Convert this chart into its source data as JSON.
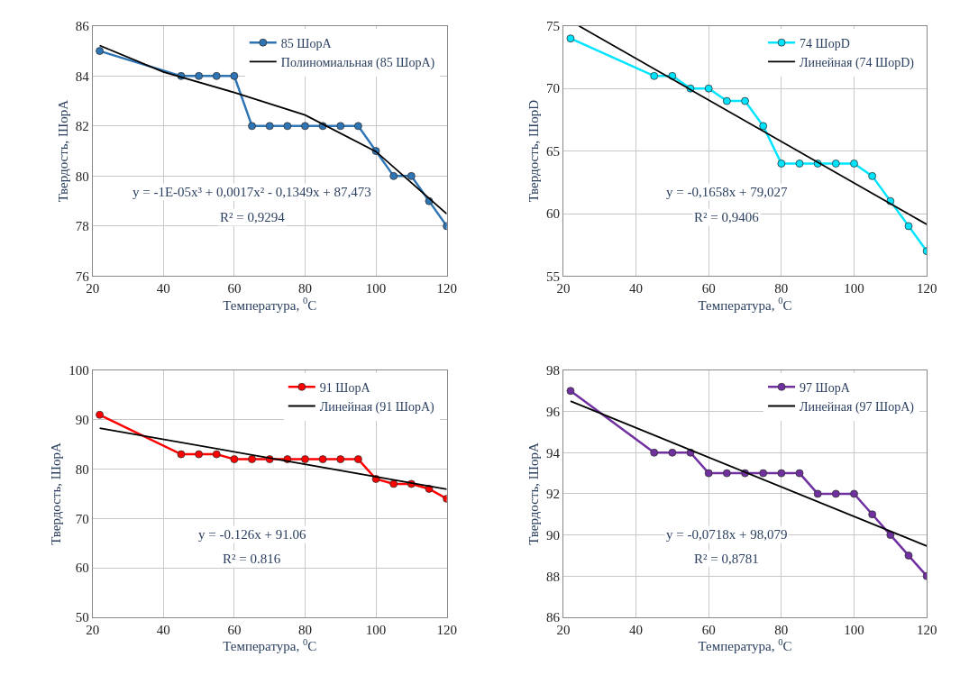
{
  "chart_data": [
    {
      "type": "line",
      "xlabel": "Температура, $^{0}$C",
      "ylabel": "Твердость, ШорА",
      "xlim": [
        20,
        120
      ],
      "xticks": [
        20,
        40,
        60,
        80,
        100,
        120
      ],
      "ylim": [
        76,
        86
      ],
      "yticks": [
        76,
        78,
        80,
        82,
        84,
        86
      ],
      "grid": true,
      "legend": "top right",
      "annotations": [
        "y = -1E-05x³ + 0,0017x² - 0,1349x + 87,473",
        "R² = 0,9294"
      ],
      "series": [
        {
          "name": "85 ШорА",
          "color": "#2e75b6",
          "marker": "circle",
          "x": [
            22,
            45,
            50,
            55,
            60,
            65,
            70,
            75,
            80,
            85,
            90,
            95,
            100,
            105,
            110,
            115,
            120
          ],
          "values": [
            85,
            84,
            84,
            84,
            84,
            82,
            82,
            82,
            82,
            82,
            82,
            82,
            81,
            80,
            80,
            79,
            78
          ]
        },
        {
          "name": "Полиномиальная (85 ШорА)",
          "type": "line",
          "color": "#000000",
          "marker": "none",
          "x": [
            22,
            40,
            60,
            80,
            100,
            120
          ],
          "values": [
            85.22,
            84.16,
            83.34,
            82.44,
            80.98,
            78.49
          ]
        }
      ]
    },
    {
      "type": "line",
      "xlabel": "Температура, $^{0}$C",
      "ylabel": "Твердость, ШорD",
      "xlim": [
        20,
        120
      ],
      "xticks": [
        20,
        40,
        60,
        80,
        100,
        120
      ],
      "ylim": [
        55,
        75
      ],
      "yticks": [
        55,
        60,
        65,
        70,
        75
      ],
      "grid": true,
      "legend": "top right",
      "annotations": [
        "y = -0,1658x + 79,027",
        "R² = 0,9406"
      ],
      "series": [
        {
          "name": "74 ШорD",
          "color": "#00e5ff",
          "marker": "circle",
          "x": [
            22,
            45,
            50,
            55,
            60,
            65,
            70,
            75,
            80,
            85,
            90,
            95,
            100,
            105,
            110,
            115,
            120
          ],
          "values": [
            74,
            71,
            71,
            70,
            70,
            69,
            69,
            67,
            64,
            64,
            64,
            64,
            64,
            63,
            61,
            59,
            57
          ]
        },
        {
          "name": "Линейная (74 ШорD)",
          "type": "line",
          "color": "#000000",
          "marker": "none",
          "x": [
            24.3,
            120
          ],
          "values": [
            75.0,
            59.13
          ]
        }
      ]
    },
    {
      "type": "line",
      "xlabel": "Температура, $^{0}$C",
      "ylabel": "Твердость, ШорА",
      "xlim": [
        20,
        120
      ],
      "xticks": [
        20,
        40,
        60,
        80,
        100,
        120
      ],
      "ylim": [
        50,
        100
      ],
      "yticks": [
        50,
        60,
        70,
        80,
        90,
        100
      ],
      "grid": true,
      "legend": "top right",
      "annotations": [
        "y = -0.126x + 91.06",
        "R² = 0.816"
      ],
      "series": [
        {
          "name": "91 ШорА",
          "color": "#ff0000",
          "marker": "circle",
          "x": [
            22,
            45,
            50,
            55,
            60,
            65,
            70,
            75,
            80,
            85,
            90,
            95,
            100,
            105,
            110,
            115,
            120
          ],
          "values": [
            91,
            83,
            83,
            83,
            82,
            82,
            82,
            82,
            82,
            82,
            82,
            82,
            78,
            77,
            77,
            76,
            74
          ]
        },
        {
          "name": "Линейная (91 ШорА)",
          "type": "line",
          "color": "#000000",
          "marker": "none",
          "x": [
            22,
            120
          ],
          "values": [
            88.29,
            75.94
          ]
        }
      ]
    },
    {
      "type": "line",
      "xlabel": "Температура, $^{0}$C",
      "ylabel": "Твердость, ШорА",
      "xlim": [
        20,
        120
      ],
      "xticks": [
        20,
        40,
        60,
        80,
        100,
        120
      ],
      "ylim": [
        86,
        98
      ],
      "yticks": [
        86,
        88,
        90,
        92,
        94,
        96,
        98
      ],
      "grid": true,
      "legend": "top right",
      "annotations": [
        "y = -0,0718x + 98,079",
        "R² = 0,8781"
      ],
      "series": [
        {
          "name": "97 ШорА",
          "color": "#7030a0",
          "marker": "circle",
          "x": [
            22,
            45,
            50,
            55,
            60,
            65,
            70,
            75,
            80,
            85,
            90,
            95,
            100,
            105,
            110,
            115,
            120
          ],
          "values": [
            97,
            94,
            94,
            94,
            93,
            93,
            93,
            93,
            93,
            93,
            92,
            92,
            92,
            91,
            90,
            89,
            88
          ]
        },
        {
          "name": "Линейная (97 ШорА)",
          "type": "line",
          "color": "#000000",
          "marker": "none",
          "x": [
            22,
            120
          ],
          "values": [
            96.5,
            89.46
          ]
        }
      ]
    }
  ]
}
